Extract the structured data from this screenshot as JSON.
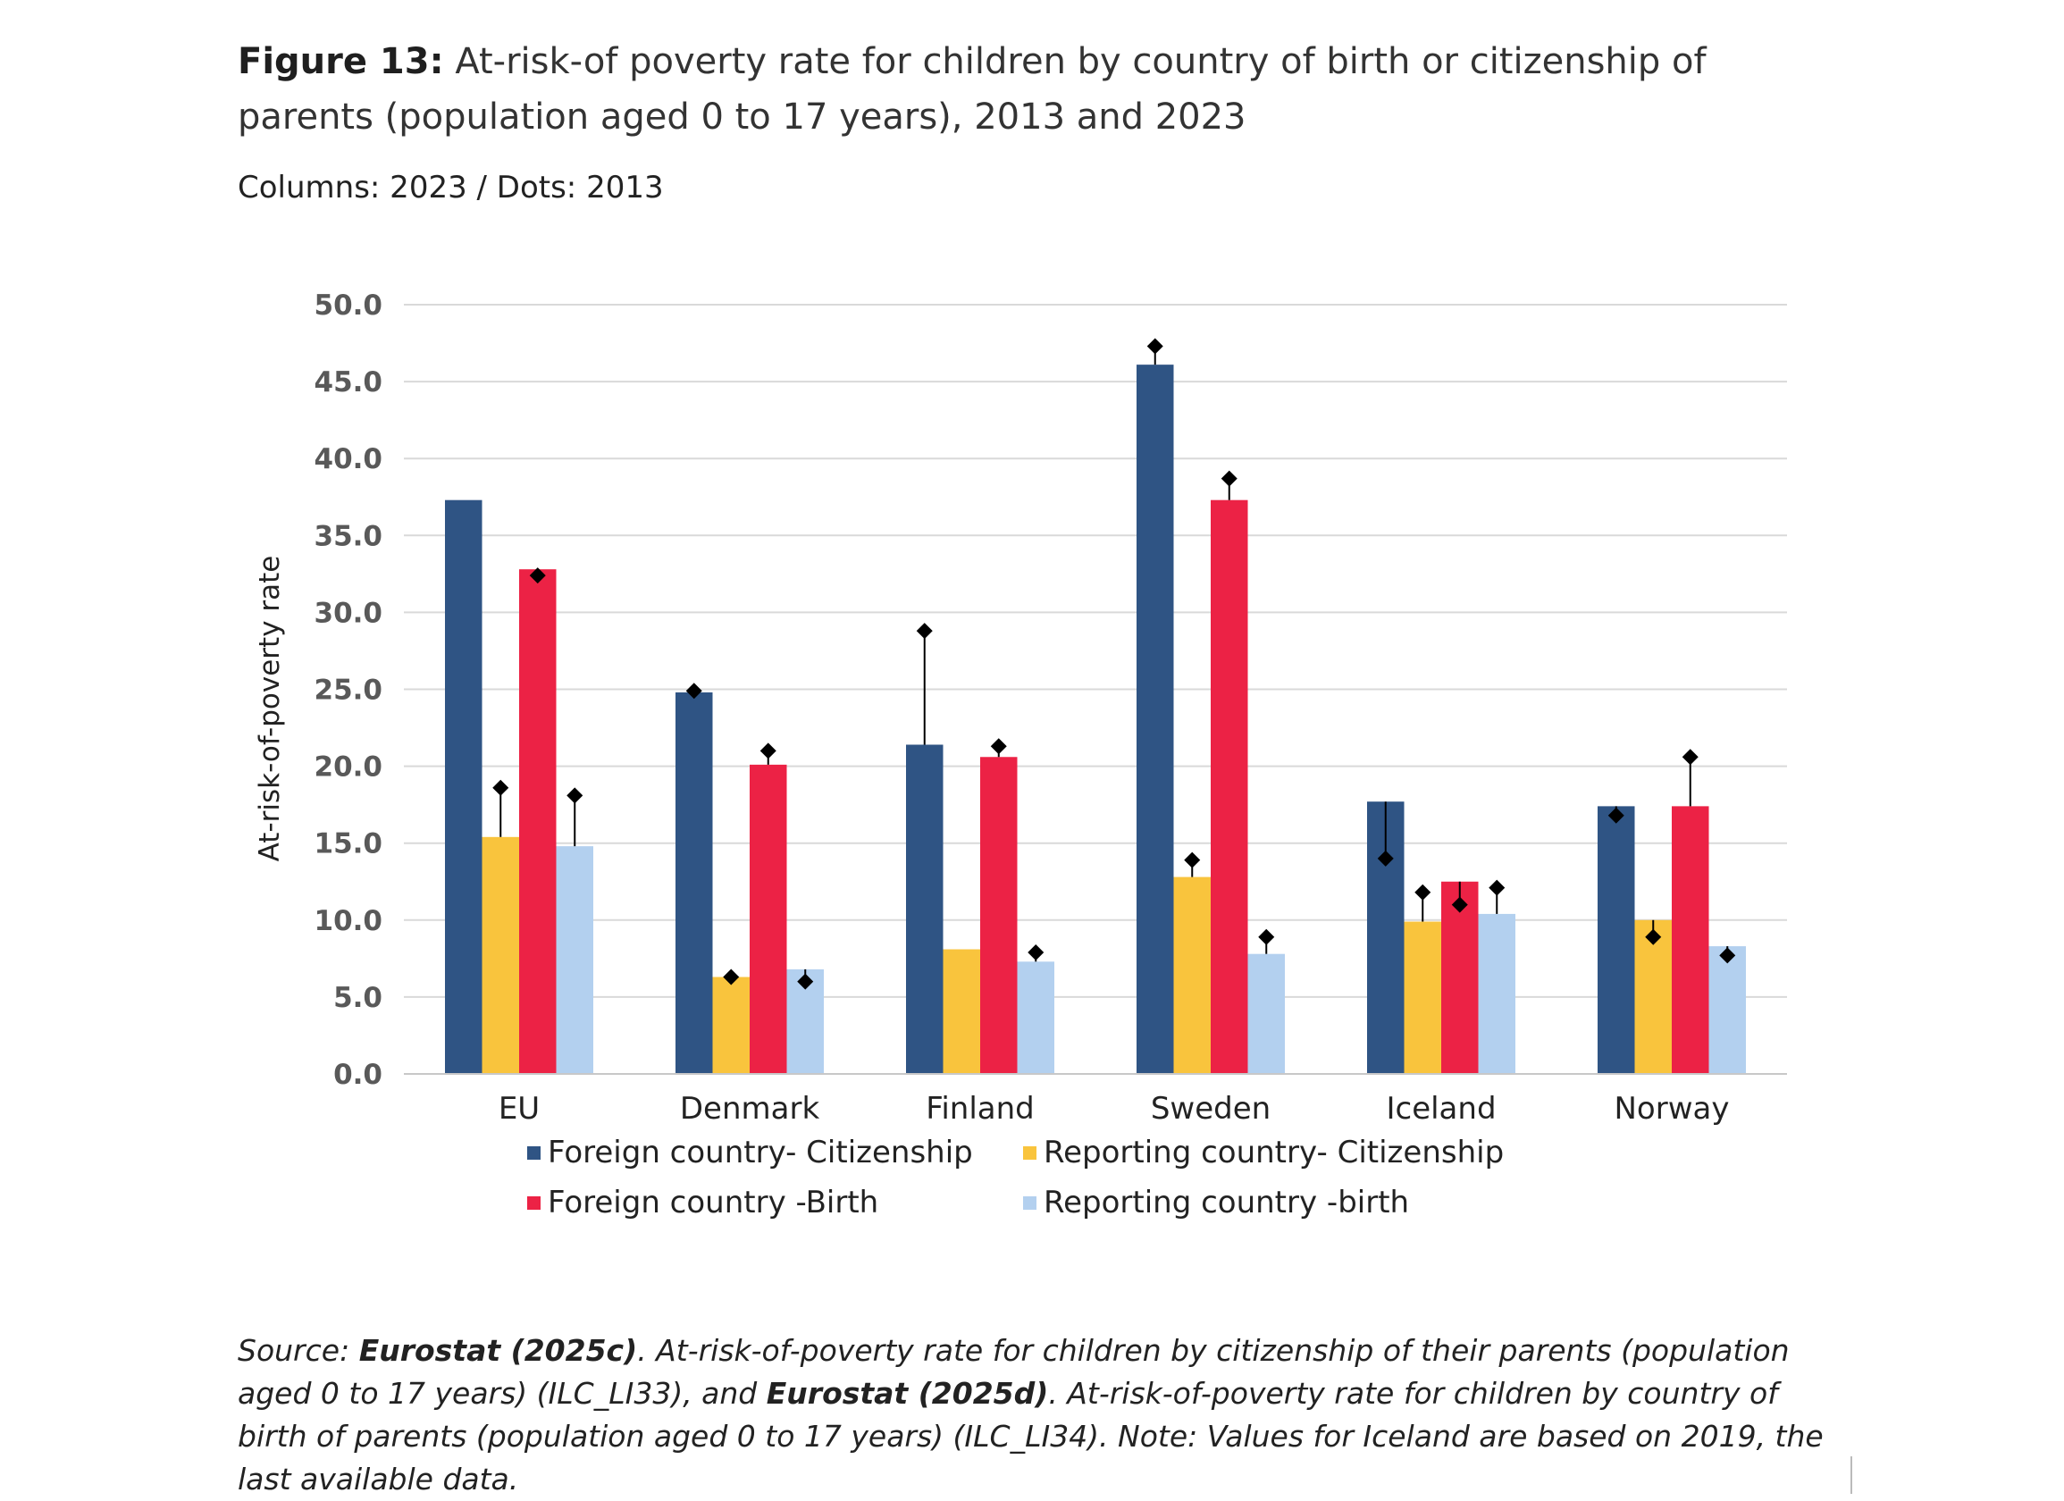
{
  "title": {
    "figure_number": "Figure 13:",
    "text": "At-risk-of poverty rate for children by country of birth or citizenship of parents (population aged 0 to 17 years), 2013 and 2023"
  },
  "subtitle": "Columns: 2023 / Dots: 2013",
  "chart_data": {
    "type": "bar",
    "title": "At-risk-of poverty rate for children by country of birth or citizenship of parents (population aged 0 to 17 years), 2013 and 2023",
    "xlabel": "",
    "ylabel": "At-risk-of-poverty rate",
    "ylim": [
      0,
      50
    ],
    "yticks": [
      "0.0",
      "5.0",
      "10.0",
      "15.0",
      "20.0",
      "25.0",
      "30.0",
      "35.0",
      "40.0",
      "45.0",
      "50.0"
    ],
    "grid": true,
    "legend_position": "bottom",
    "categories": [
      "EU",
      "Denmark",
      "Finland",
      "Sweden",
      "Iceland",
      "Norway"
    ],
    "series": [
      {
        "name": "Foreign country- Citizenship",
        "color": "#2f5484",
        "values": [
          37.3,
          24.8,
          21.4,
          46.1,
          17.7,
          17.4
        ],
        "dots_2013": [
          null,
          24.9,
          28.8,
          47.3,
          14.0,
          16.8
        ]
      },
      {
        "name": "Reporting country- Citizenship",
        "color": "#f9c43d",
        "values": [
          15.4,
          6.3,
          8.1,
          12.8,
          9.9,
          10.0
        ],
        "dots_2013": [
          18.6,
          6.3,
          null,
          13.9,
          11.8,
          8.9
        ]
      },
      {
        "name": "Foreign country -Birth",
        "color": "#ec2245",
        "values": [
          32.8,
          20.1,
          20.6,
          37.3,
          12.5,
          17.4
        ],
        "dots_2013": [
          32.4,
          21.0,
          21.3,
          38.7,
          11.0,
          20.6
        ]
      },
      {
        "name": "Reporting country -birth",
        "color": "#b3d0ef",
        "values": [
          14.8,
          6.8,
          7.3,
          7.8,
          10.4,
          8.3
        ],
        "dots_2013": [
          18.1,
          6.0,
          7.9,
          8.9,
          12.1,
          7.7
        ]
      }
    ],
    "dots_label": "2013",
    "columns_label": "2023"
  },
  "legend": [
    {
      "label": "Foreign country- Citizenship",
      "color": "#2f5484"
    },
    {
      "label": "Reporting country- Citizenship",
      "color": "#f9c43d"
    },
    {
      "label": "Foreign country -Birth",
      "color": "#ec2245"
    },
    {
      "label": "Reporting country -birth",
      "color": "#b3d0ef"
    }
  ],
  "source": {
    "lead": "Source:",
    "ref1": "Eurostat (2025c)",
    "text1": ". At-risk-of-poverty rate for children by citizenship of their parents (population aged 0 to 17 years) (ILC_LI33), and",
    "ref2": "Eurostat (2025d)",
    "text2": ". At-risk-of-poverty rate for children by country of birth of parents (population aged 0 to 17 years) (ILC_LI34). Note: Values for Iceland are based on 2019, the last available data."
  }
}
